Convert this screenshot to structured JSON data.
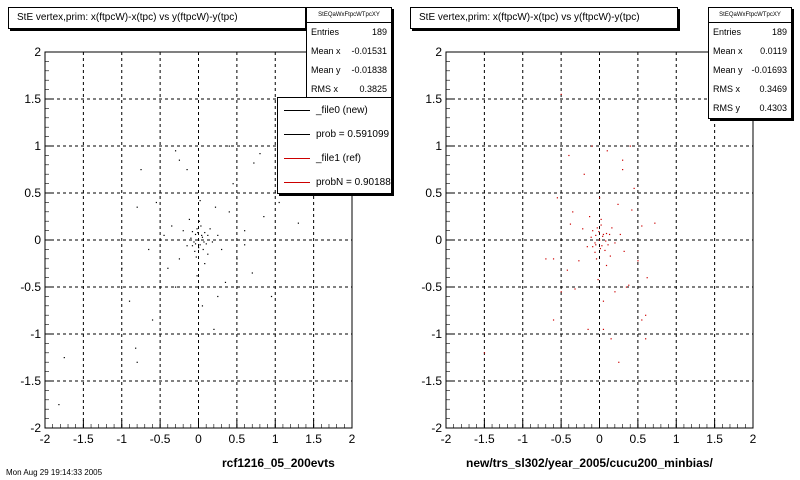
{
  "panels": [
    {
      "header": "StE  vertex,prim: x(ftpcW)-x(tpc) vs y(ftpcW)-y(tpc)",
      "stats": {
        "title": "StEQaWxFtpcWTpcXY",
        "rows": [
          {
            "label": "Entries",
            "value": "189"
          },
          {
            "label": "Mean x",
            "value": "-0.01531"
          },
          {
            "label": "Mean y",
            "value": "-0.01838"
          },
          {
            "label": "RMS x",
            "value": "0.3825"
          }
        ]
      },
      "legend": {
        "entries": [
          {
            "text": "_file0 (new)",
            "color": "#000000"
          },
          {
            "text": "prob = 0.591099",
            "color": "#000000"
          },
          {
            "text": "_file1 (ref)",
            "color": "#cc0000"
          },
          {
            "text": "probN = 0.901886",
            "color": "#cc0000"
          }
        ]
      },
      "caption": "rcf1216_05_200evts",
      "footer": "Mon Aug 29 19:14:33 2005"
    },
    {
      "header": "StE  vertex,prim: x(ftpcW)-x(tpc) vs y(ftpcW)-y(tpc)",
      "stats": {
        "title": "StEQaWxFtpcWTpcXY",
        "rows": [
          {
            "label": "Entries",
            "value": "189"
          },
          {
            "label": "Mean x",
            "value": "0.0119"
          },
          {
            "label": "Mean y",
            "value": "-0.01693"
          },
          {
            "label": "RMS x",
            "value": "0.3469"
          },
          {
            "label": "RMS y",
            "value": "0.4303"
          }
        ]
      },
      "caption": "new/trs_sl302/year_2005/cucu200_minbias/"
    }
  ],
  "chart_data": [
    {
      "type": "scatter",
      "title": "StE  vertex,prim: x(ftpcW)-x(tpc) vs y(ftpcW)-y(tpc)",
      "xlim": [
        -2,
        2
      ],
      "ylim": [
        -2,
        2
      ],
      "xticks": [
        "-2",
        "-1.5",
        "-1",
        "-0.5",
        "0",
        "0.5",
        "1",
        "1.5",
        "2"
      ],
      "yticks": [
        "-2",
        "-1.5",
        "-1",
        "-0.5",
        "0",
        "0.5",
        "1",
        "1.5",
        "2"
      ],
      "grid": true,
      "series": [
        {
          "color": "#000000",
          "points": [
            [
              0,
              0
            ],
            [
              0.05,
              0.03
            ],
            [
              -0.04,
              0.06
            ],
            [
              0.02,
              -0.05
            ],
            [
              -0.06,
              -0.02
            ],
            [
              0.08,
              0.08
            ],
            [
              -0.02,
              0.12
            ],
            [
              0.1,
              -0.04
            ],
            [
              -0.1,
              0.02
            ],
            [
              0.03,
              0.15
            ],
            [
              -0.05,
              -0.12
            ],
            [
              0.12,
              0.05
            ],
            [
              0.0,
              -0.08
            ],
            [
              -0.08,
              0.09
            ],
            [
              0.06,
              -0.1
            ],
            [
              0.15,
              0.12
            ],
            [
              -0.15,
              -0.06
            ],
            [
              0.01,
              0.2
            ],
            [
              -0.03,
              -0.18
            ],
            [
              0.18,
              -0.02
            ],
            [
              -0.2,
              0.1
            ],
            [
              0.25,
              0.05
            ],
            [
              -0.12,
              0.22
            ],
            [
              0.08,
              -0.25
            ],
            [
              0.3,
              -0.1
            ],
            [
              -0.25,
              -0.2
            ],
            [
              0.4,
              0.3
            ],
            [
              -0.35,
              0.15
            ],
            [
              0.22,
              0.35
            ],
            [
              -0.4,
              -0.3
            ],
            [
              0.5,
              -0.2
            ],
            [
              0.6,
              0.1
            ],
            [
              -0.55,
              0.4
            ],
            [
              0.35,
              -0.45
            ],
            [
              -0.3,
              -0.5
            ],
            [
              0.7,
              -0.35
            ],
            [
              -0.65,
              -0.1
            ],
            [
              0.45,
              0.6
            ],
            [
              -0.15,
              0.75
            ],
            [
              0.05,
              -0.7
            ],
            [
              0.85,
              0.25
            ],
            [
              -0.8,
              0.35
            ],
            [
              0.95,
              -0.6
            ],
            [
              -0.9,
              -0.65
            ],
            [
              0.4,
              1.0
            ],
            [
              -0.3,
              0.95
            ],
            [
              0.2,
              -0.95
            ],
            [
              1.3,
              0.18
            ],
            [
              0.72,
              0.82
            ],
            [
              -0.25,
              0.85
            ],
            [
              0.8,
              0.92
            ],
            [
              -0.75,
              0.75
            ],
            [
              -0.6,
              -0.85
            ],
            [
              0.25,
              -0.6
            ],
            [
              1.05,
              0.4
            ],
            [
              -1.0,
              -0.3
            ],
            [
              -0.8,
              -1.3
            ],
            [
              -0.82,
              -1.15
            ],
            [
              -1.75,
              -1.25
            ],
            [
              -1.82,
              -1.75
            ],
            [
              0.6,
              -0.05
            ],
            [
              -0.45,
              0.05
            ],
            [
              0.02,
              0.42
            ],
            [
              -0.02,
              -0.38
            ],
            [
              0.12,
              -0.15
            ],
            [
              -0.08,
              -0.06
            ],
            [
              0.04,
              0.05
            ],
            [
              -0.04,
              -0.04
            ],
            [
              0.07,
              -0.02
            ],
            [
              -0.01,
              0.08
            ]
          ]
        }
      ]
    },
    {
      "type": "scatter",
      "title": "StE  vertex,prim: x(ftpcW)-x(tpc) vs y(ftpcW)-y(tpc)",
      "xlim": [
        -2,
        2
      ],
      "ylim": [
        -2,
        2
      ],
      "xticks": [
        "-2",
        "-1.5",
        "-1",
        "-0.5",
        "0",
        "0.5",
        "1",
        "1.5",
        "2"
      ],
      "yticks": [
        "-2",
        "-1.5",
        "-1",
        "-0.5",
        "0",
        "0.5",
        "1",
        "1.5",
        "2"
      ],
      "grid": true,
      "series": [
        {
          "color": "#cc0000",
          "points": [
            [
              0,
              0
            ],
            [
              0.04,
              0.04
            ],
            [
              -0.05,
              0.05
            ],
            [
              0.03,
              -0.06
            ],
            [
              -0.06,
              -0.03
            ],
            [
              0.09,
              0.07
            ],
            [
              -0.03,
              0.13
            ],
            [
              0.11,
              -0.05
            ],
            [
              -0.11,
              0.03
            ],
            [
              0.02,
              0.16
            ],
            [
              -0.06,
              -0.13
            ],
            [
              0.13,
              0.06
            ],
            [
              0.01,
              -0.09
            ],
            [
              -0.09,
              0.1
            ],
            [
              0.07,
              -0.11
            ],
            [
              0.16,
              0.13
            ],
            [
              -0.16,
              -0.07
            ],
            [
              0.02,
              0.22
            ],
            [
              -0.04,
              -0.2
            ],
            [
              0.2,
              -0.03
            ],
            [
              -0.22,
              0.12
            ],
            [
              0.27,
              0.06
            ],
            [
              -0.13,
              0.25
            ],
            [
              0.09,
              -0.27
            ],
            [
              0.32,
              -0.12
            ],
            [
              -0.27,
              -0.22
            ],
            [
              0.42,
              0.32
            ],
            [
              -0.38,
              0.17
            ],
            [
              0.24,
              0.38
            ],
            [
              -0.42,
              -0.32
            ],
            [
              0.5,
              -0.22
            ],
            [
              -0.55,
              0.45
            ],
            [
              0.38,
              -0.48
            ],
            [
              -0.32,
              -0.52
            ],
            [
              0.55,
              0.15
            ],
            [
              -0.6,
              -0.2
            ],
            [
              0.45,
              0.55
            ],
            [
              -0.2,
              0.7
            ],
            [
              0.05,
              -0.65
            ],
            [
              0.3,
              0.85
            ],
            [
              -0.1,
              1.0
            ],
            [
              -0.5,
              1.55
            ],
            [
              0.1,
              0.95
            ],
            [
              0.3,
              0.75
            ],
            [
              0.4,
              1.0
            ],
            [
              -0.4,
              0.9
            ],
            [
              0.05,
              -0.95
            ],
            [
              -0.6,
              -0.85
            ],
            [
              0.35,
              -0.5
            ],
            [
              0.6,
              -0.8
            ],
            [
              -0.7,
              -0.2
            ],
            [
              -0.5,
              -0.55
            ],
            [
              0.2,
              -0.55
            ],
            [
              0.25,
              -1.3
            ],
            [
              -0.15,
              -0.95
            ],
            [
              0.15,
              -1.05
            ],
            [
              0.55,
              -0.85
            ],
            [
              -1.5,
              -1.2
            ],
            [
              0.62,
              -0.4
            ],
            [
              -0.35,
              0.3
            ],
            [
              0.0,
              0.45
            ],
            [
              -0.02,
              -0.42
            ],
            [
              0.14,
              -0.17
            ],
            [
              -0.09,
              -0.07
            ],
            [
              0.05,
              0.06
            ],
            [
              -0.05,
              -0.05
            ],
            [
              0.08,
              -0.01
            ],
            [
              -0.01,
              0.09
            ],
            [
              0.6,
              -1.05
            ],
            [
              0.72,
              0.18
            ]
          ]
        }
      ]
    }
  ]
}
